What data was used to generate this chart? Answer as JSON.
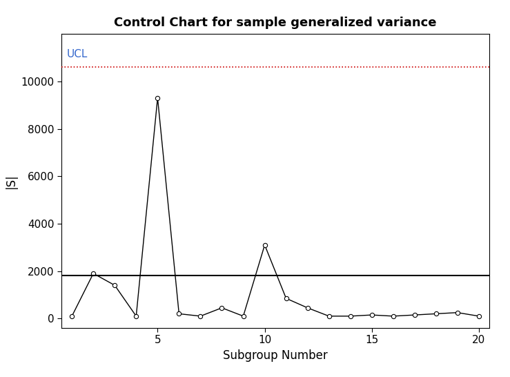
{
  "title": "Control Chart for sample generalized variance",
  "xlabel": "Subgroup Number",
  "ylabel": "|S|",
  "x": [
    1,
    2,
    3,
    4,
    5,
    6,
    7,
    8,
    9,
    10,
    11,
    12,
    13,
    14,
    15,
    16,
    17,
    18,
    19,
    20
  ],
  "y": [
    100,
    1900,
    1400,
    100,
    9300,
    200,
    100,
    450,
    100,
    3100,
    850,
    450,
    100,
    100,
    150,
    100,
    150,
    200,
    250,
    100
  ],
  "UCL": 10600,
  "CL": 1800,
  "UCL_color": "#cc0000",
  "CL_color": "black",
  "line_color": "black",
  "point_facecolor": "white",
  "point_edgecolor": "black",
  "UCL_linestyle": "dotted",
  "CL_linestyle": "solid",
  "ucl_label": "UCL",
  "ucl_label_color": "#3366cc",
  "ylim": [
    -400,
    12000
  ],
  "xlim": [
    0.5,
    20.5
  ],
  "yticks": [
    0,
    2000,
    4000,
    6000,
    8000,
    10000
  ],
  "xticks": [
    5,
    10,
    15,
    20
  ],
  "title_fontsize": 13,
  "axis_label_fontsize": 12,
  "tick_fontsize": 11,
  "figwidth": 7.39,
  "figheight": 5.46,
  "dpi": 100
}
